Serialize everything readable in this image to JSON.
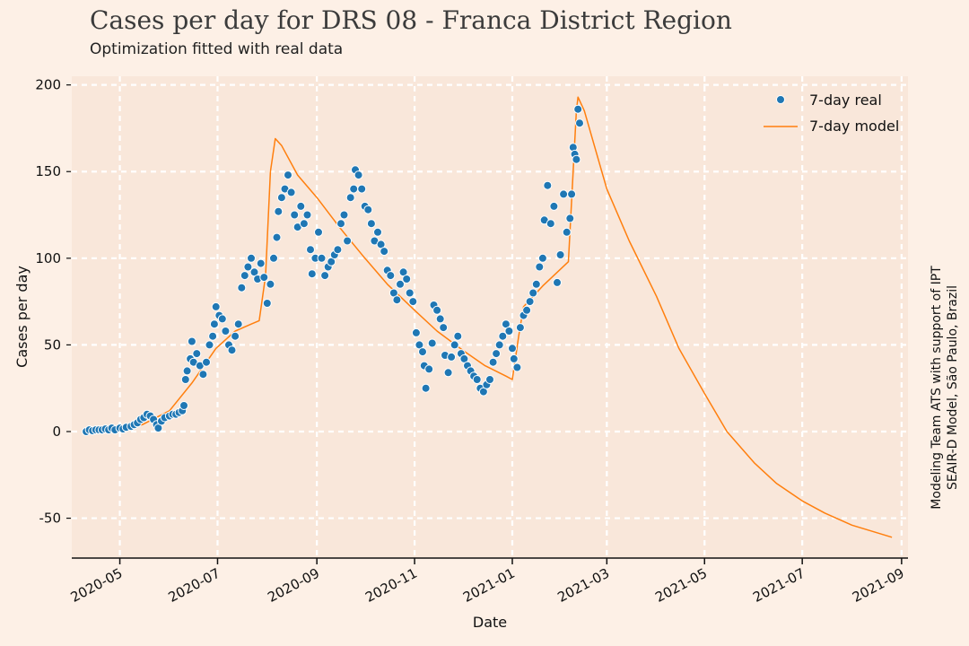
{
  "chart_data": {
    "type": "scatter",
    "title": "Cases per day for DRS 08 - Franca District Region",
    "subtitle": "Optimization fitted with real data",
    "xlabel": "Date",
    "ylabel": "Cases per day",
    "side_note": [
      "Modeling Team ATS with support of IPT",
      "SEAIR-D Model, São Paulo, Brazil"
    ],
    "ylim": [
      -73,
      205
    ],
    "xlim": [
      "2020-04-01",
      "2021-09-05"
    ],
    "y_ticks": [
      -50,
      0,
      50,
      100,
      150,
      200
    ],
    "x_ticks": [
      "2020-05",
      "2020-07",
      "2020-09",
      "2020-11",
      "2021-01",
      "2021-03",
      "2021-05",
      "2021-07",
      "2021-09"
    ],
    "grid": true,
    "legend_position": "top-right",
    "colors": {
      "real": "#1f77b4",
      "model": "#ff7f0e",
      "background": "#fdf0e6",
      "plot_bg": "#f9e7da",
      "grid": "#ffffff"
    },
    "series": [
      {
        "name": "7-day real",
        "kind": "scatter",
        "points": [
          [
            "2020-04-10",
            0
          ],
          [
            "2020-04-12",
            1
          ],
          [
            "2020-04-14",
            0.5
          ],
          [
            "2020-04-16",
            1
          ],
          [
            "2020-04-18",
            1
          ],
          [
            "2020-04-20",
            1
          ],
          [
            "2020-04-22",
            1.5
          ],
          [
            "2020-04-24",
            1
          ],
          [
            "2020-04-26",
            2
          ],
          [
            "2020-04-28",
            1
          ],
          [
            "2020-05-01",
            2
          ],
          [
            "2020-05-03",
            1.5
          ],
          [
            "2020-05-05",
            2.5
          ],
          [
            "2020-05-08",
            3
          ],
          [
            "2020-05-10",
            4
          ],
          [
            "2020-05-12",
            5
          ],
          [
            "2020-05-14",
            7
          ],
          [
            "2020-05-16",
            8
          ],
          [
            "2020-05-18",
            10
          ],
          [
            "2020-05-20",
            9
          ],
          [
            "2020-05-22",
            7
          ],
          [
            "2020-05-24",
            4
          ],
          [
            "2020-05-25",
            2
          ],
          [
            "2020-05-27",
            6
          ],
          [
            "2020-05-29",
            8
          ],
          [
            "2020-06-01",
            9
          ],
          [
            "2020-06-03",
            10
          ],
          [
            "2020-06-05",
            10
          ],
          [
            "2020-06-07",
            11
          ],
          [
            "2020-06-09",
            12
          ],
          [
            "2020-06-10",
            15
          ],
          [
            "2020-06-11",
            30
          ],
          [
            "2020-06-12",
            35
          ],
          [
            "2020-06-14",
            42
          ],
          [
            "2020-06-15",
            52
          ],
          [
            "2020-06-16",
            40
          ],
          [
            "2020-06-18",
            45
          ],
          [
            "2020-06-20",
            38
          ],
          [
            "2020-06-22",
            33
          ],
          [
            "2020-06-24",
            40
          ],
          [
            "2020-06-26",
            50
          ],
          [
            "2020-06-28",
            55
          ],
          [
            "2020-06-29",
            62
          ],
          [
            "2020-06-30",
            72
          ],
          [
            "2020-07-02",
            67
          ],
          [
            "2020-07-04",
            65
          ],
          [
            "2020-07-06",
            58
          ],
          [
            "2020-07-08",
            50
          ],
          [
            "2020-07-10",
            47
          ],
          [
            "2020-07-12",
            55
          ],
          [
            "2020-07-14",
            62
          ],
          [
            "2020-07-16",
            83
          ],
          [
            "2020-07-18",
            90
          ],
          [
            "2020-07-20",
            95
          ],
          [
            "2020-07-22",
            100
          ],
          [
            "2020-07-24",
            92
          ],
          [
            "2020-07-26",
            88
          ],
          [
            "2020-07-28",
            97
          ],
          [
            "2020-07-30",
            89
          ],
          [
            "2020-08-01",
            74
          ],
          [
            "2020-08-03",
            85
          ],
          [
            "2020-08-05",
            100
          ],
          [
            "2020-08-07",
            112
          ],
          [
            "2020-08-08",
            127
          ],
          [
            "2020-08-10",
            135
          ],
          [
            "2020-08-12",
            140
          ],
          [
            "2020-08-14",
            148
          ],
          [
            "2020-08-16",
            138
          ],
          [
            "2020-08-18",
            125
          ],
          [
            "2020-08-20",
            118
          ],
          [
            "2020-08-22",
            130
          ],
          [
            "2020-08-24",
            120
          ],
          [
            "2020-08-26",
            125
          ],
          [
            "2020-08-28",
            105
          ],
          [
            "2020-08-29",
            91
          ],
          [
            "2020-08-31",
            100
          ],
          [
            "2020-09-02",
            115
          ],
          [
            "2020-09-04",
            100
          ],
          [
            "2020-09-06",
            90
          ],
          [
            "2020-09-08",
            95
          ],
          [
            "2020-09-10",
            98
          ],
          [
            "2020-09-12",
            102
          ],
          [
            "2020-09-14",
            105
          ],
          [
            "2020-09-16",
            120
          ],
          [
            "2020-09-18",
            125
          ],
          [
            "2020-09-20",
            110
          ],
          [
            "2020-09-22",
            135
          ],
          [
            "2020-09-24",
            140
          ],
          [
            "2020-09-25",
            151
          ],
          [
            "2020-09-27",
            148
          ],
          [
            "2020-09-29",
            140
          ],
          [
            "2020-10-01",
            130
          ],
          [
            "2020-10-03",
            128
          ],
          [
            "2020-10-05",
            120
          ],
          [
            "2020-10-07",
            110
          ],
          [
            "2020-10-09",
            115
          ],
          [
            "2020-10-11",
            108
          ],
          [
            "2020-10-13",
            104
          ],
          [
            "2020-10-15",
            93
          ],
          [
            "2020-10-17",
            90
          ],
          [
            "2020-10-19",
            80
          ],
          [
            "2020-10-21",
            76
          ],
          [
            "2020-10-23",
            85
          ],
          [
            "2020-10-25",
            92
          ],
          [
            "2020-10-27",
            88
          ],
          [
            "2020-10-29",
            80
          ],
          [
            "2020-10-31",
            75
          ],
          [
            "2020-11-02",
            57
          ],
          [
            "2020-11-04",
            50
          ],
          [
            "2020-11-06",
            46
          ],
          [
            "2020-11-07",
            38
          ],
          [
            "2020-11-08",
            25
          ],
          [
            "2020-11-10",
            36
          ],
          [
            "2020-11-12",
            51
          ],
          [
            "2020-11-13",
            73
          ],
          [
            "2020-11-15",
            70
          ],
          [
            "2020-11-17",
            65
          ],
          [
            "2020-11-19",
            60
          ],
          [
            "2020-11-20",
            44
          ],
          [
            "2020-11-22",
            34
          ],
          [
            "2020-11-24",
            43
          ],
          [
            "2020-11-26",
            50
          ],
          [
            "2020-11-28",
            55
          ],
          [
            "2020-11-30",
            45
          ],
          [
            "2020-12-02",
            42
          ],
          [
            "2020-12-04",
            38
          ],
          [
            "2020-12-06",
            35
          ],
          [
            "2020-12-08",
            32
          ],
          [
            "2020-12-10",
            30
          ],
          [
            "2020-12-12",
            25
          ],
          [
            "2020-12-14",
            23
          ],
          [
            "2020-12-16",
            27
          ],
          [
            "2020-12-18",
            30
          ],
          [
            "2020-12-20",
            40
          ],
          [
            "2020-12-22",
            45
          ],
          [
            "2020-12-24",
            50
          ],
          [
            "2020-12-26",
            55
          ],
          [
            "2020-12-28",
            62
          ],
          [
            "2020-12-30",
            58
          ],
          [
            "2021-01-01",
            48
          ],
          [
            "2021-01-02",
            42
          ],
          [
            "2021-01-04",
            37
          ],
          [
            "2021-01-06",
            60
          ],
          [
            "2021-01-08",
            67
          ],
          [
            "2021-01-10",
            70
          ],
          [
            "2021-01-12",
            75
          ],
          [
            "2021-01-14",
            80
          ],
          [
            "2021-01-16",
            85
          ],
          [
            "2021-01-18",
            95
          ],
          [
            "2021-01-20",
            100
          ],
          [
            "2021-01-21",
            122
          ],
          [
            "2021-01-23",
            142
          ],
          [
            "2021-01-25",
            120
          ],
          [
            "2021-01-27",
            130
          ],
          [
            "2021-01-29",
            86
          ],
          [
            "2021-01-31",
            102
          ],
          [
            "2021-02-02",
            137
          ],
          [
            "2021-02-04",
            115
          ],
          [
            "2021-02-06",
            123
          ],
          [
            "2021-02-07",
            137
          ],
          [
            "2021-02-08",
            164
          ],
          [
            "2021-02-09",
            160
          ],
          [
            "2021-02-10",
            157
          ],
          [
            "2021-02-11",
            186
          ],
          [
            "2021-02-12",
            178
          ]
        ]
      },
      {
        "name": "7-day model",
        "kind": "line",
        "points": [
          [
            "2020-04-10",
            0
          ],
          [
            "2020-04-20",
            0
          ],
          [
            "2020-05-01",
            1
          ],
          [
            "2020-05-15",
            4
          ],
          [
            "2020-06-01",
            12
          ],
          [
            "2020-06-15",
            28
          ],
          [
            "2020-06-30",
            48
          ],
          [
            "2020-07-12",
            58
          ],
          [
            "2020-07-22",
            62
          ],
          [
            "2020-07-27",
            64
          ],
          [
            "2020-07-31",
            90
          ],
          [
            "2020-08-03",
            150
          ],
          [
            "2020-08-06",
            169
          ],
          [
            "2020-08-10",
            165
          ],
          [
            "2020-08-20",
            148
          ],
          [
            "2020-09-01",
            135
          ],
          [
            "2020-09-15",
            118
          ],
          [
            "2020-10-01",
            100
          ],
          [
            "2020-10-15",
            85
          ],
          [
            "2020-11-01",
            70
          ],
          [
            "2020-11-15",
            58
          ],
          [
            "2020-12-01",
            47
          ],
          [
            "2020-12-15",
            38
          ],
          [
            "2020-12-28",
            32
          ],
          [
            "2021-01-01",
            30
          ],
          [
            "2021-01-05",
            55
          ],
          [
            "2021-01-08",
            72
          ],
          [
            "2021-01-20",
            84
          ],
          [
            "2021-02-05",
            98
          ],
          [
            "2021-02-08",
            150
          ],
          [
            "2021-02-10",
            185
          ],
          [
            "2021-02-11",
            193
          ],
          [
            "2021-02-15",
            185
          ],
          [
            "2021-03-01",
            140
          ],
          [
            "2021-03-15",
            110
          ],
          [
            "2021-04-01",
            78
          ],
          [
            "2021-04-15",
            48
          ],
          [
            "2021-05-01",
            22
          ],
          [
            "2021-05-15",
            0
          ],
          [
            "2021-06-01",
            -18
          ],
          [
            "2021-06-15",
            -30
          ],
          [
            "2021-07-01",
            -40
          ],
          [
            "2021-07-15",
            -47
          ],
          [
            "2021-08-01",
            -54
          ],
          [
            "2021-08-26",
            -61
          ]
        ]
      }
    ]
  }
}
